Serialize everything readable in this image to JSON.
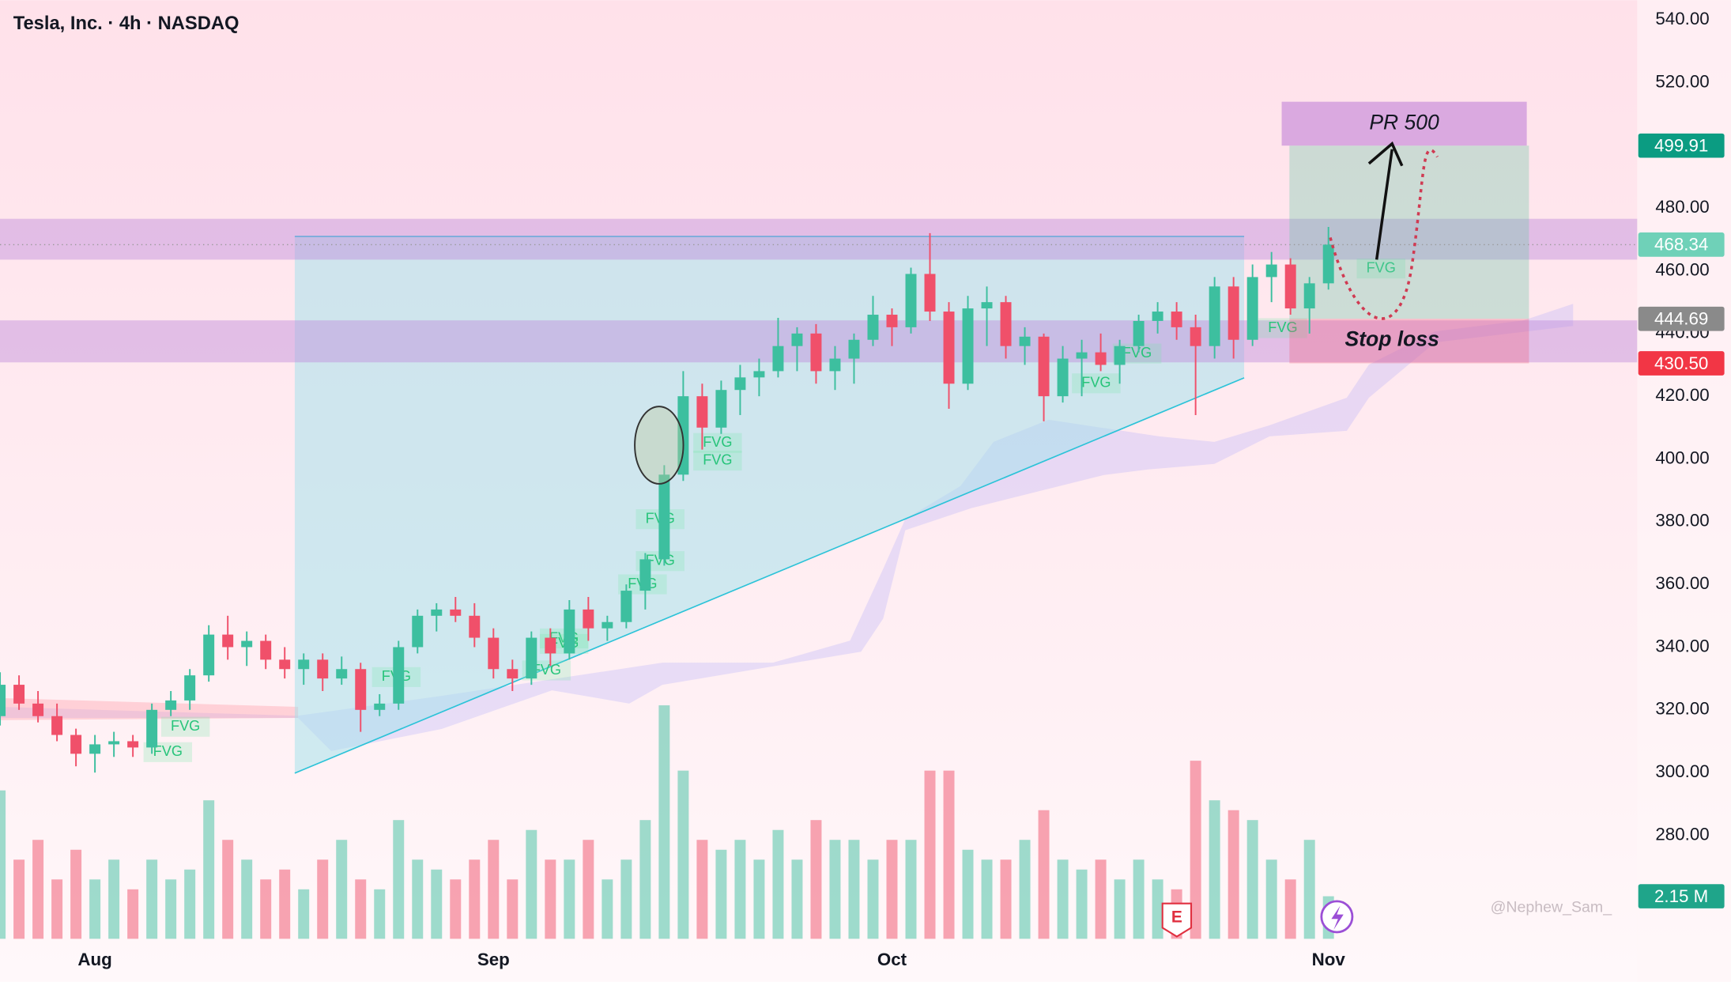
{
  "chart_data": {
    "type": "candlestick",
    "title": "Tesla, Inc. · 4h · NASDAQ",
    "categories": [
      null,
      null,
      null,
      null,
      null,
      "Aug",
      null,
      null,
      null,
      null,
      null,
      null,
      null,
      null,
      null,
      null,
      null,
      null,
      null,
      null,
      null,
      null,
      null,
      null,
      null,
      null,
      "Sep",
      null,
      null,
      null,
      null,
      null,
      null,
      null,
      null,
      null,
      null,
      null,
      null,
      null,
      null,
      null,
      null,
      null,
      null,
      null,
      null,
      "Oct",
      null,
      null,
      null,
      null,
      null,
      null,
      null,
      null,
      null,
      null,
      null,
      null,
      null,
      null,
      null,
      null,
      null,
      null,
      null,
      null,
      null,
      null,
      "Nov"
    ],
    "open": [
      318,
      328,
      322,
      318,
      312,
      306,
      309,
      310,
      308,
      320,
      323,
      331,
      344,
      340,
      342,
      336,
      333,
      336,
      330,
      333,
      320,
      322,
      340,
      350,
      352,
      350,
      343,
      333,
      330,
      343,
      338,
      352,
      346,
      348,
      358,
      368,
      395,
      420,
      410,
      422,
      426,
      428,
      436,
      440,
      428,
      432,
      438,
      446,
      442,
      459,
      447,
      424,
      448,
      450,
      436,
      439,
      420,
      432,
      434,
      430,
      436,
      444,
      447,
      442,
      436,
      455,
      438,
      458,
      462,
      448,
      456
    ],
    "high": [
      332,
      331,
      326,
      322,
      314,
      312,
      313,
      312,
      322,
      326,
      333,
      347,
      350,
      345,
      344,
      340,
      338,
      338,
      337,
      335,
      325,
      342,
      352,
      354,
      356,
      354,
      346,
      336,
      345,
      346,
      355,
      356,
      350,
      360,
      370,
      398,
      428,
      424,
      425,
      430,
      432,
      445,
      442,
      443,
      436,
      440,
      452,
      448,
      461,
      472,
      450,
      452,
      455,
      452,
      442,
      440,
      436,
      438,
      440,
      438,
      446,
      450,
      450,
      446,
      458,
      458,
      462,
      466,
      464,
      458,
      474
    ],
    "low": [
      315,
      320,
      316,
      310,
      302,
      300,
      305,
      305,
      306,
      318,
      320,
      329,
      336,
      334,
      333,
      330,
      328,
      326,
      328,
      313,
      318,
      320,
      338,
      345,
      348,
      340,
      330,
      326,
      328,
      334,
      336,
      342,
      342,
      346,
      352,
      366,
      393,
      403,
      408,
      414,
      420,
      426,
      428,
      424,
      422,
      424,
      436,
      436,
      440,
      444,
      416,
      422,
      436,
      432,
      430,
      412,
      418,
      420,
      428,
      424,
      434,
      440,
      438,
      414,
      432,
      432,
      436,
      450,
      446,
      440,
      454
    ],
    "close": [
      328,
      322,
      318,
      312,
      306,
      309,
      310,
      308,
      320,
      323,
      331,
      344,
      340,
      342,
      336,
      333,
      336,
      330,
      333,
      320,
      322,
      340,
      350,
      352,
      350,
      343,
      333,
      330,
      343,
      338,
      352,
      346,
      348,
      358,
      368,
      395,
      420,
      410,
      422,
      426,
      428,
      436,
      440,
      428,
      432,
      438,
      446,
      442,
      459,
      447,
      424,
      448,
      450,
      436,
      439,
      420,
      432,
      434,
      430,
      436,
      444,
      447,
      442,
      436,
      455,
      438,
      458,
      462,
      448,
      456,
      468.34
    ],
    "volume": [
      7.5,
      4,
      5,
      3,
      4.5,
      3,
      4,
      2.5,
      4,
      3,
      3.5,
      7,
      5,
      4,
      3,
      3.5,
      2.5,
      4,
      5,
      3,
      2.5,
      6,
      4,
      3.5,
      3,
      4,
      5,
      3,
      5.5,
      4,
      4,
      5,
      3,
      4,
      6,
      11.8,
      8.5,
      5,
      4.5,
      5,
      4,
      5.5,
      4,
      6,
      5,
      5,
      4,
      5,
      5,
      8.5,
      8.5,
      4.5,
      4,
      4,
      5,
      6.5,
      4,
      3.5,
      4,
      3,
      4,
      3,
      2.5,
      9,
      7,
      6.5,
      6,
      4,
      3,
      5,
      2.15
    ],
    "up_color": "#3dbf9f",
    "down_color": "#f0506a",
    "ylim": [
      247,
      546.3
    ],
    "yticks": [
      {
        "value": 280,
        "label": "280.00"
      },
      {
        "value": 300,
        "label": "300.00"
      },
      {
        "value": 320,
        "label": "320.00"
      },
      {
        "value": 340,
        "label": "340.00"
      },
      {
        "value": 360,
        "label": "360.00"
      },
      {
        "value": 380,
        "label": "380.00"
      },
      {
        "value": 400,
        "label": "400.00"
      },
      {
        "value": 420,
        "label": "420.00"
      },
      {
        "value": 440,
        "label": "440.00"
      },
      {
        "value": 460,
        "label": "460.00"
      },
      {
        "value": 480,
        "label": "480.00"
      },
      {
        "value": 500,
        "label": "500.00"
      },
      {
        "value": 520,
        "label": "520.00"
      },
      {
        "value": 540,
        "label": "540.00"
      }
    ],
    "volume_ylim": [
      0,
      12
    ],
    "volume_label": {
      "value": 2.15,
      "label": "2.15 M"
    },
    "price_labels": [
      {
        "value": 499.91,
        "color": "#0b9c82"
      },
      {
        "value": 468.34,
        "color": "#6fd1b8"
      },
      {
        "value": 444.69,
        "color": "#8a8a8a"
      },
      {
        "value": 430.5,
        "label": "430.50",
        "color": "#f23645"
      }
    ],
    "annotations": {
      "target": "PR 500",
      "stop": "Stop loss",
      "fvg": [
        "FVG",
        "FVG",
        "FVG",
        "FVG",
        "FVG",
        "FVG",
        "FVG",
        "FVG",
        "FVG",
        "FVG",
        "FVG",
        "FVG",
        "FVG",
        "FVG",
        "FVG"
      ],
      "earnings": "E",
      "watermark": "@Nephew_Sam_"
    }
  }
}
